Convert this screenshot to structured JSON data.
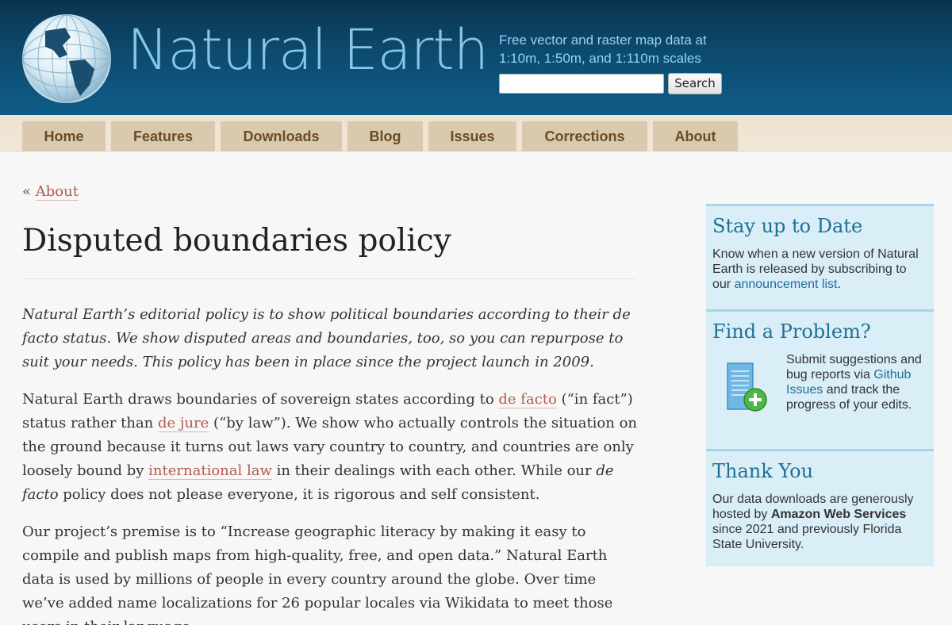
{
  "header": {
    "logo_text": "Natural Earth",
    "tagline_line1": "Free vector and raster map data at",
    "tagline_line2": "1:10m, 1:50m, and 1:110m scales",
    "search_value": "",
    "search_button": "Search"
  },
  "nav": {
    "items": [
      {
        "label": "Home"
      },
      {
        "label": "Features"
      },
      {
        "label": "Downloads"
      },
      {
        "label": "Blog"
      },
      {
        "label": "Issues"
      },
      {
        "label": "Corrections"
      },
      {
        "label": "About"
      }
    ]
  },
  "breadcrumb": {
    "prefix": "«",
    "link": "About"
  },
  "page": {
    "title": "Disputed boundaries policy",
    "intro": "Natural Earth’s editorial policy is to show political boundaries according to their de facto status. We show disputed areas and boundaries, too, so you can repurpose to suit your needs. This policy has been in place since the project launch in 2009.",
    "p2": {
      "t1": "Natural Earth draws boundaries of sovereign states according to ",
      "link1": "de facto",
      "t2": " (“in fact”) status rather than ",
      "link2": "de jure",
      "t3": " (“by law”). We show who actually controls the situation on the ground because it turns out laws vary country to country, and countries are only loosely bound by ",
      "link3": "international law",
      "t4": " in their dealings with each other. While our ",
      "em1": "de facto",
      "t5": " policy does not please everyone, it is rigorous and self consistent."
    },
    "p3": "Our project’s premise is to “Increase geographic literacy by making it easy to compile and publish maps from high-quality, free, and open data.” Natural Earth data is used by millions of people in every country around the globe. Over time we’ve added name localizations for 26 popular locales via Wikidata to meet those users in their language."
  },
  "sidebar": {
    "stay": {
      "title": "Stay up to Date",
      "text": "Know when a new version of Natural Earth is released by subscribing to our ",
      "link": "announcement list",
      "end": "."
    },
    "problem": {
      "title": "Find a Problem?",
      "t1": "Submit suggestions and bug reports via ",
      "link": "Github Issues",
      "t2": " and track the progress of your edits."
    },
    "thanks": {
      "title": "Thank You",
      "t1": "Our data downloads are generously hosted by ",
      "bold": "Amazon Web Services",
      "t2": " since 2021 and previously Florida State University."
    }
  },
  "colors": {
    "header_dark": "#0b3350",
    "header_light": "#0e5d88",
    "logo": "#86c6e6",
    "nav_tab": "#d9c9ae",
    "nav_text": "#6b4b24",
    "link": "#b45a50",
    "sidebar_bg": "#daeef7",
    "sidebar_title": "#1f6f96"
  }
}
